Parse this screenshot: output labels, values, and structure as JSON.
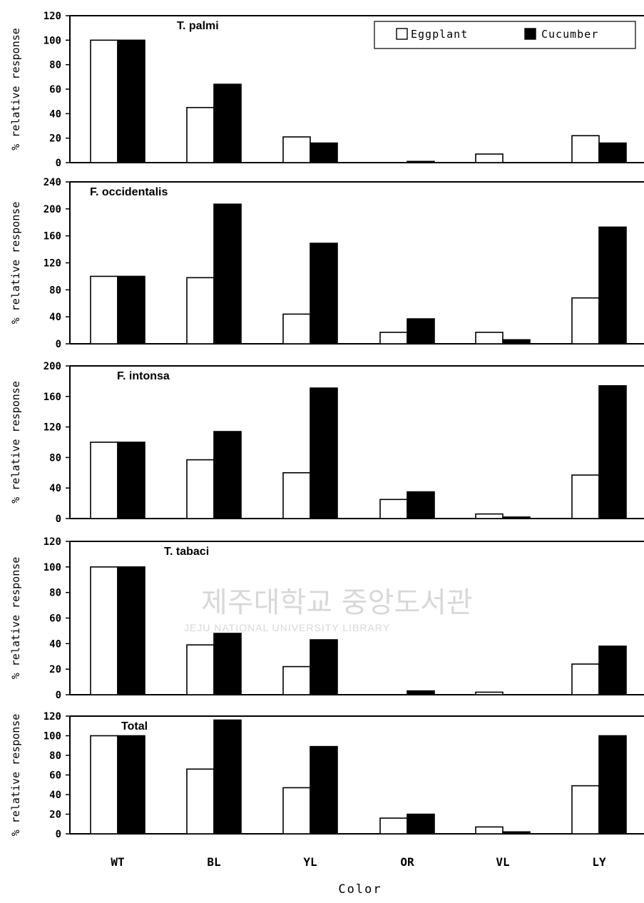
{
  "chart_data": {
    "type": "bar",
    "categories": [
      "WT",
      "BL",
      "YL",
      "OR",
      "VL",
      "LY"
    ],
    "xlabel": "Color",
    "legend": {
      "placement": "top-right",
      "entries": [
        "Eggplant",
        "Cucumber"
      ]
    },
    "colors": {
      "Eggplant": "#ffffff",
      "Cucumber": "#000000"
    },
    "grid": false,
    "panels": [
      {
        "title": "T. palmi",
        "ylabel": "% relative response",
        "ylim": [
          0,
          120
        ],
        "yticks": [
          0,
          20,
          40,
          60,
          80,
          100,
          120
        ],
        "series": [
          {
            "name": "Eggplant",
            "values": [
              100,
              45,
              21,
              0,
              7,
              22
            ]
          },
          {
            "name": "Cucumber",
            "values": [
              100,
              64,
              16,
              1,
              0,
              16
            ]
          }
        ]
      },
      {
        "title": "F. occidentalis",
        "ylabel": "% relative response",
        "ylim": [
          0,
          240
        ],
        "yticks": [
          0,
          40,
          80,
          120,
          160,
          200,
          240
        ],
        "series": [
          {
            "name": "Eggplant",
            "values": [
              100,
              98,
              44,
              17,
              17,
              68
            ]
          },
          {
            "name": "Cucumber",
            "values": [
              100,
              207,
              149,
              37,
              6,
              173
            ]
          }
        ]
      },
      {
        "title": "F. intonsa",
        "ylabel": "% relative response",
        "ylim": [
          0,
          200
        ],
        "yticks": [
          0,
          40,
          80,
          120,
          160,
          200
        ],
        "series": [
          {
            "name": "Eggplant",
            "values": [
              100,
              77,
              60,
              25,
              6,
              57
            ]
          },
          {
            "name": "Cucumber",
            "values": [
              100,
              114,
              171,
              35,
              2,
              174
            ]
          }
        ]
      },
      {
        "title": "T. tabaci",
        "ylabel": "% relative response",
        "ylim": [
          0,
          120
        ],
        "yticks": [
          0,
          20,
          40,
          60,
          80,
          100,
          120
        ],
        "series": [
          {
            "name": "Eggplant",
            "values": [
              100,
              39,
              22,
              0,
              2,
              24
            ]
          },
          {
            "name": "Cucumber",
            "values": [
              100,
              48,
              43,
              3,
              0,
              38
            ]
          }
        ]
      },
      {
        "title": "Total",
        "ylabel": "% relative response",
        "ylim": [
          0,
          120
        ],
        "yticks": [
          0,
          20,
          40,
          60,
          80,
          100,
          120
        ],
        "series": [
          {
            "name": "Eggplant",
            "values": [
              100,
              66,
              47,
              16,
              7,
              49
            ]
          },
          {
            "name": "Cucumber",
            "values": [
              100,
              116,
              89,
              20,
              2,
              100
            ]
          }
        ]
      }
    ]
  },
  "watermark": {
    "korean": "제주대학교 중앙도서관",
    "english": "JEJU NATIONAL UNIVERSITY LIBRARY"
  }
}
